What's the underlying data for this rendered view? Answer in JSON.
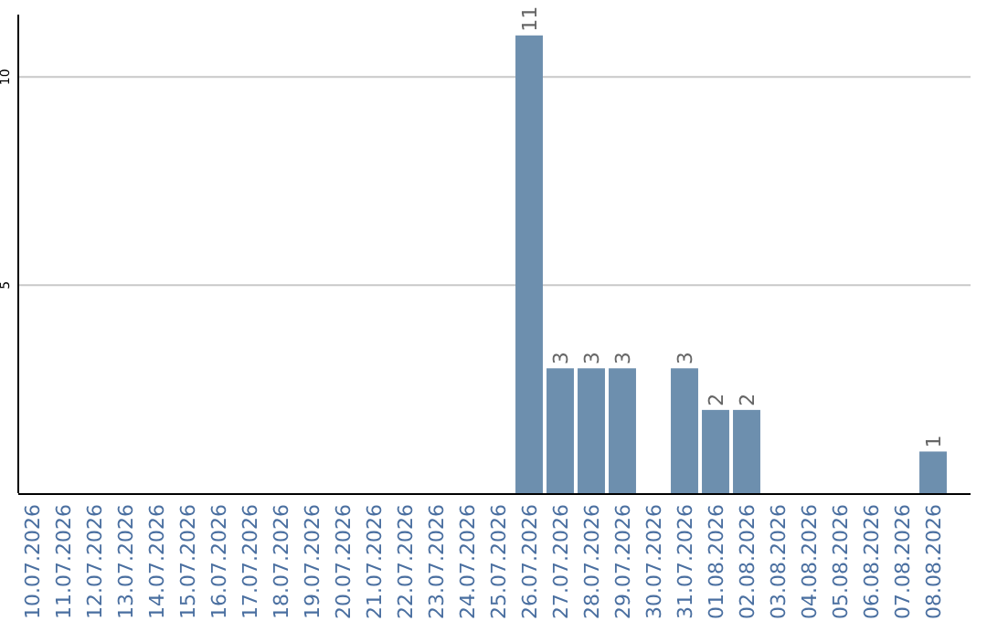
{
  "chart_data": {
    "type": "bar",
    "categories": [
      "10.07.2026",
      "11.07.2026",
      "12.07.2026",
      "13.07.2026",
      "14.07.2026",
      "15.07.2026",
      "16.07.2026",
      "17.07.2026",
      "18.07.2026",
      "19.07.2026",
      "20.07.2026",
      "21.07.2026",
      "22.07.2026",
      "23.07.2026",
      "24.07.2026",
      "25.07.2026",
      "26.07.2026",
      "27.07.2026",
      "28.07.2026",
      "29.07.2026",
      "30.07.2026",
      "31.07.2026",
      "01.08.2026",
      "02.08.2026",
      "03.08.2026",
      "04.08.2026",
      "05.08.2026",
      "06.08.2026",
      "07.08.2026",
      "08.08.2026"
    ],
    "values": [
      0,
      0,
      0,
      0,
      0,
      0,
      0,
      0,
      0,
      0,
      0,
      0,
      0,
      0,
      0,
      0,
      11,
      3,
      3,
      3,
      0,
      3,
      2,
      2,
      0,
      0,
      0,
      0,
      0,
      1
    ],
    "value_labels": [
      null,
      null,
      null,
      null,
      null,
      null,
      null,
      null,
      null,
      null,
      null,
      null,
      null,
      null,
      null,
      null,
      "11",
      "3",
      "3",
      "3",
      null,
      "3",
      "2",
      "2",
      null,
      null,
      null,
      null,
      null,
      "1"
    ],
    "color": "#6d8fae",
    "ylim": [
      0,
      11.5
    ],
    "yticks": [
      5,
      10
    ],
    "grid": "y"
  }
}
